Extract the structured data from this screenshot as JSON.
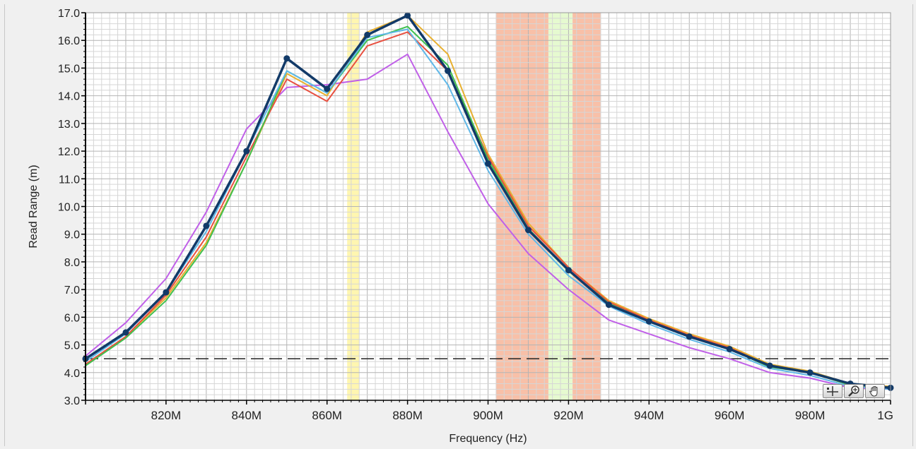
{
  "chart_data": {
    "type": "line",
    "title": "",
    "xlabel": "Frequency (Hz)",
    "ylabel": "Read Range (m)",
    "xlim": [
      800,
      1000
    ],
    "ylim": [
      3.0,
      17.0
    ],
    "grid": true,
    "x_tick_labels": [
      {
        "x": 820,
        "label": "820M"
      },
      {
        "x": 840,
        "label": "840M"
      },
      {
        "x": 860,
        "label": "860M"
      },
      {
        "x": 880,
        "label": "880M"
      },
      {
        "x": 900,
        "label": "900M"
      },
      {
        "x": 920,
        "label": "920M"
      },
      {
        "x": 940,
        "label": "940M"
      },
      {
        "x": 960,
        "label": "960M"
      },
      {
        "x": 980,
        "label": "980M"
      },
      {
        "x": 1000,
        "label": "1G"
      }
    ],
    "y_tick_labels": [
      "3.0",
      "4.0",
      "5.0",
      "6.0",
      "7.0",
      "8.0",
      "9.0",
      "10.0",
      "11.0",
      "12.0",
      "13.0",
      "14.0",
      "15.0",
      "16.0",
      "17.0"
    ],
    "x": [
      800,
      810,
      820,
      830,
      840,
      850,
      860,
      870,
      880,
      890,
      900,
      910,
      920,
      930,
      940,
      950,
      960,
      970,
      980,
      990,
      1000
    ],
    "series": [
      {
        "color": "#c060e8",
        "width": 2,
        "markers": false,
        "values": [
          4.6,
          5.8,
          7.4,
          9.8,
          12.8,
          14.3,
          14.4,
          14.6,
          15.5,
          12.7,
          10.1,
          8.3,
          7.0,
          5.9,
          5.4,
          4.9,
          4.5,
          4.0,
          3.8,
          3.45,
          3.4
        ]
      },
      {
        "color": "#e8b030",
        "width": 2,
        "markers": false,
        "values": [
          4.3,
          5.3,
          6.7,
          8.7,
          11.6,
          14.8,
          14.0,
          16.3,
          16.9,
          15.5,
          11.9,
          9.4,
          7.8,
          6.6,
          5.95,
          5.4,
          4.95,
          4.3,
          4.05,
          3.6,
          3.5
        ]
      },
      {
        "color": "#e85040",
        "width": 2,
        "markers": false,
        "values": [
          4.3,
          5.3,
          6.8,
          8.9,
          11.8,
          14.6,
          13.8,
          15.8,
          16.3,
          14.9,
          11.8,
          9.3,
          7.8,
          6.55,
          5.9,
          5.35,
          4.9,
          4.25,
          4.0,
          3.55,
          3.45
        ]
      },
      {
        "color": "#40c050",
        "width": 2,
        "markers": false,
        "values": [
          4.25,
          5.25,
          6.6,
          8.6,
          11.6,
          14.9,
          14.1,
          16.0,
          16.5,
          15.1,
          11.7,
          9.2,
          7.7,
          6.5,
          5.85,
          5.3,
          4.85,
          4.2,
          4.0,
          3.55,
          3.45
        ]
      },
      {
        "color": "#60b8e8",
        "width": 2,
        "markers": false,
        "values": [
          4.4,
          5.4,
          6.9,
          9.1,
          12.0,
          14.9,
          14.1,
          16.1,
          16.4,
          14.4,
          11.3,
          9.0,
          7.5,
          6.4,
          5.75,
          5.2,
          4.75,
          4.15,
          3.9,
          3.5,
          3.4
        ]
      },
      {
        "color": "#123a68",
        "width": 3.5,
        "markers": true,
        "values": [
          4.5,
          5.45,
          6.9,
          9.3,
          12.0,
          15.35,
          14.25,
          16.2,
          16.9,
          14.9,
          11.55,
          9.15,
          7.7,
          6.45,
          5.85,
          5.3,
          4.85,
          4.25,
          4.0,
          3.6,
          3.45
        ]
      }
    ],
    "reference_line": {
      "y": 4.5,
      "style": "dashed",
      "color": "#222222"
    },
    "shaded_bands": [
      {
        "x0": 865,
        "x1": 868,
        "color": "#fff6b0"
      },
      {
        "x0": 902,
        "x1": 915,
        "color": "#f8c0a8"
      },
      {
        "x0": 915,
        "x1": 921,
        "color": "#e6fad0"
      },
      {
        "x0": 921,
        "x1": 928,
        "color": "#f8c0a8"
      }
    ]
  },
  "toolbar": {
    "tools": [
      {
        "name": "cursor-move-tool",
        "icon": "crosshair-icon"
      },
      {
        "name": "zoom-tool",
        "icon": "magnifier-icon"
      },
      {
        "name": "pan-tool",
        "icon": "hand-icon"
      }
    ]
  },
  "colors": {
    "plot_background": "#ffffff",
    "grid": "#c8c8c8",
    "frame_background": "#f0f0f0"
  }
}
